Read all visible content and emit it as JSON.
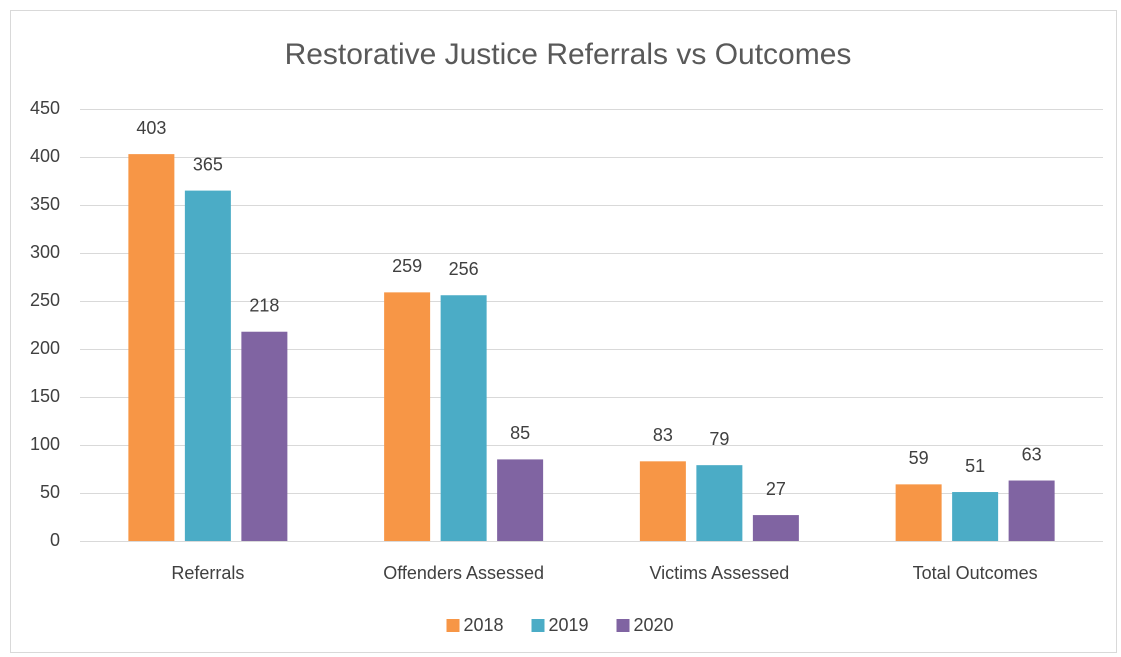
{
  "chart_data": {
    "type": "bar",
    "title": "Restorative Justice Referrals vs Outcomes",
    "categories": [
      "Referrals",
      "Offenders Assessed",
      "Victims Assessed",
      "Total Outcomes"
    ],
    "series": [
      {
        "name": "2018",
        "color": "#f79646",
        "values": [
          403,
          259,
          83,
          59
        ]
      },
      {
        "name": "2019",
        "color": "#4bacc6",
        "values": [
          365,
          256,
          79,
          51
        ]
      },
      {
        "name": "2020",
        "color": "#8064a2",
        "values": [
          218,
          85,
          27,
          63
        ]
      }
    ],
    "ylim": [
      0,
      450
    ],
    "yticks": [
      0,
      50,
      100,
      150,
      200,
      250,
      300,
      350,
      400,
      450
    ],
    "grid": true,
    "legend": "bottom"
  }
}
